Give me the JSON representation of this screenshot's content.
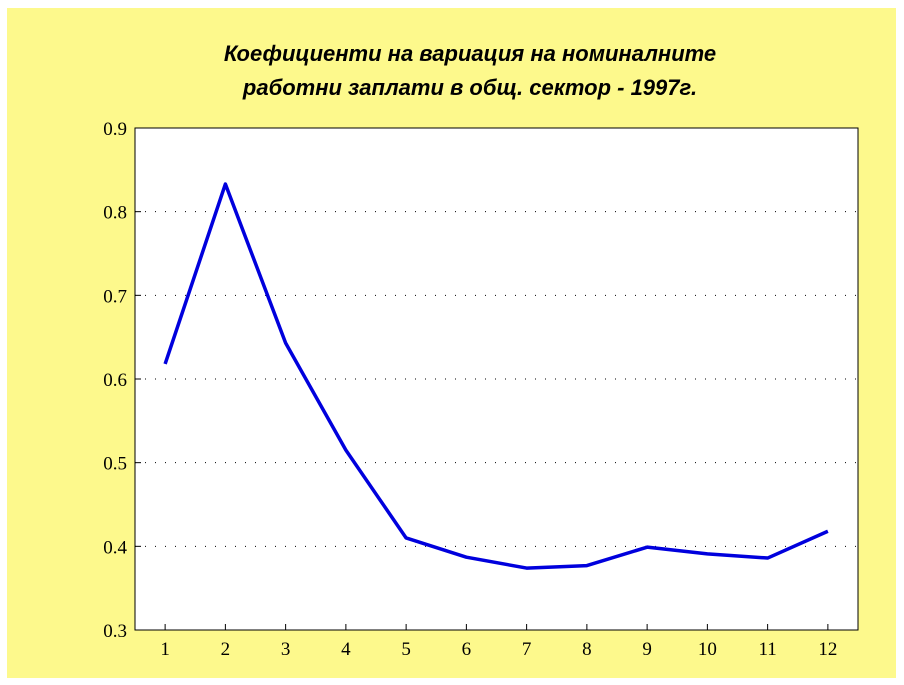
{
  "chart_data": {
    "type": "line",
    "title": [
      "Коефициенти на вариация на номиналните",
      "работни заплати в общ. сектор - 1997г."
    ],
    "x": [
      1,
      2,
      3,
      4,
      5,
      6,
      7,
      8,
      9,
      10,
      11,
      12
    ],
    "series": [
      {
        "color": "#0000dd",
        "values": [
          0.618,
          0.833,
          0.643,
          0.515,
          0.41,
          0.387,
          0.374,
          0.377,
          0.399,
          0.391,
          0.386,
          0.418
        ]
      }
    ],
    "xlim": [
      0.5,
      12.5
    ],
    "xticks": [
      1,
      2,
      3,
      4,
      5,
      6,
      7,
      8,
      9,
      10,
      11,
      12
    ],
    "ylim": [
      0.3,
      0.9
    ],
    "yticks": [
      0.3,
      0.4,
      0.5,
      0.6,
      0.7,
      0.8,
      0.9
    ],
    "grid": true
  }
}
